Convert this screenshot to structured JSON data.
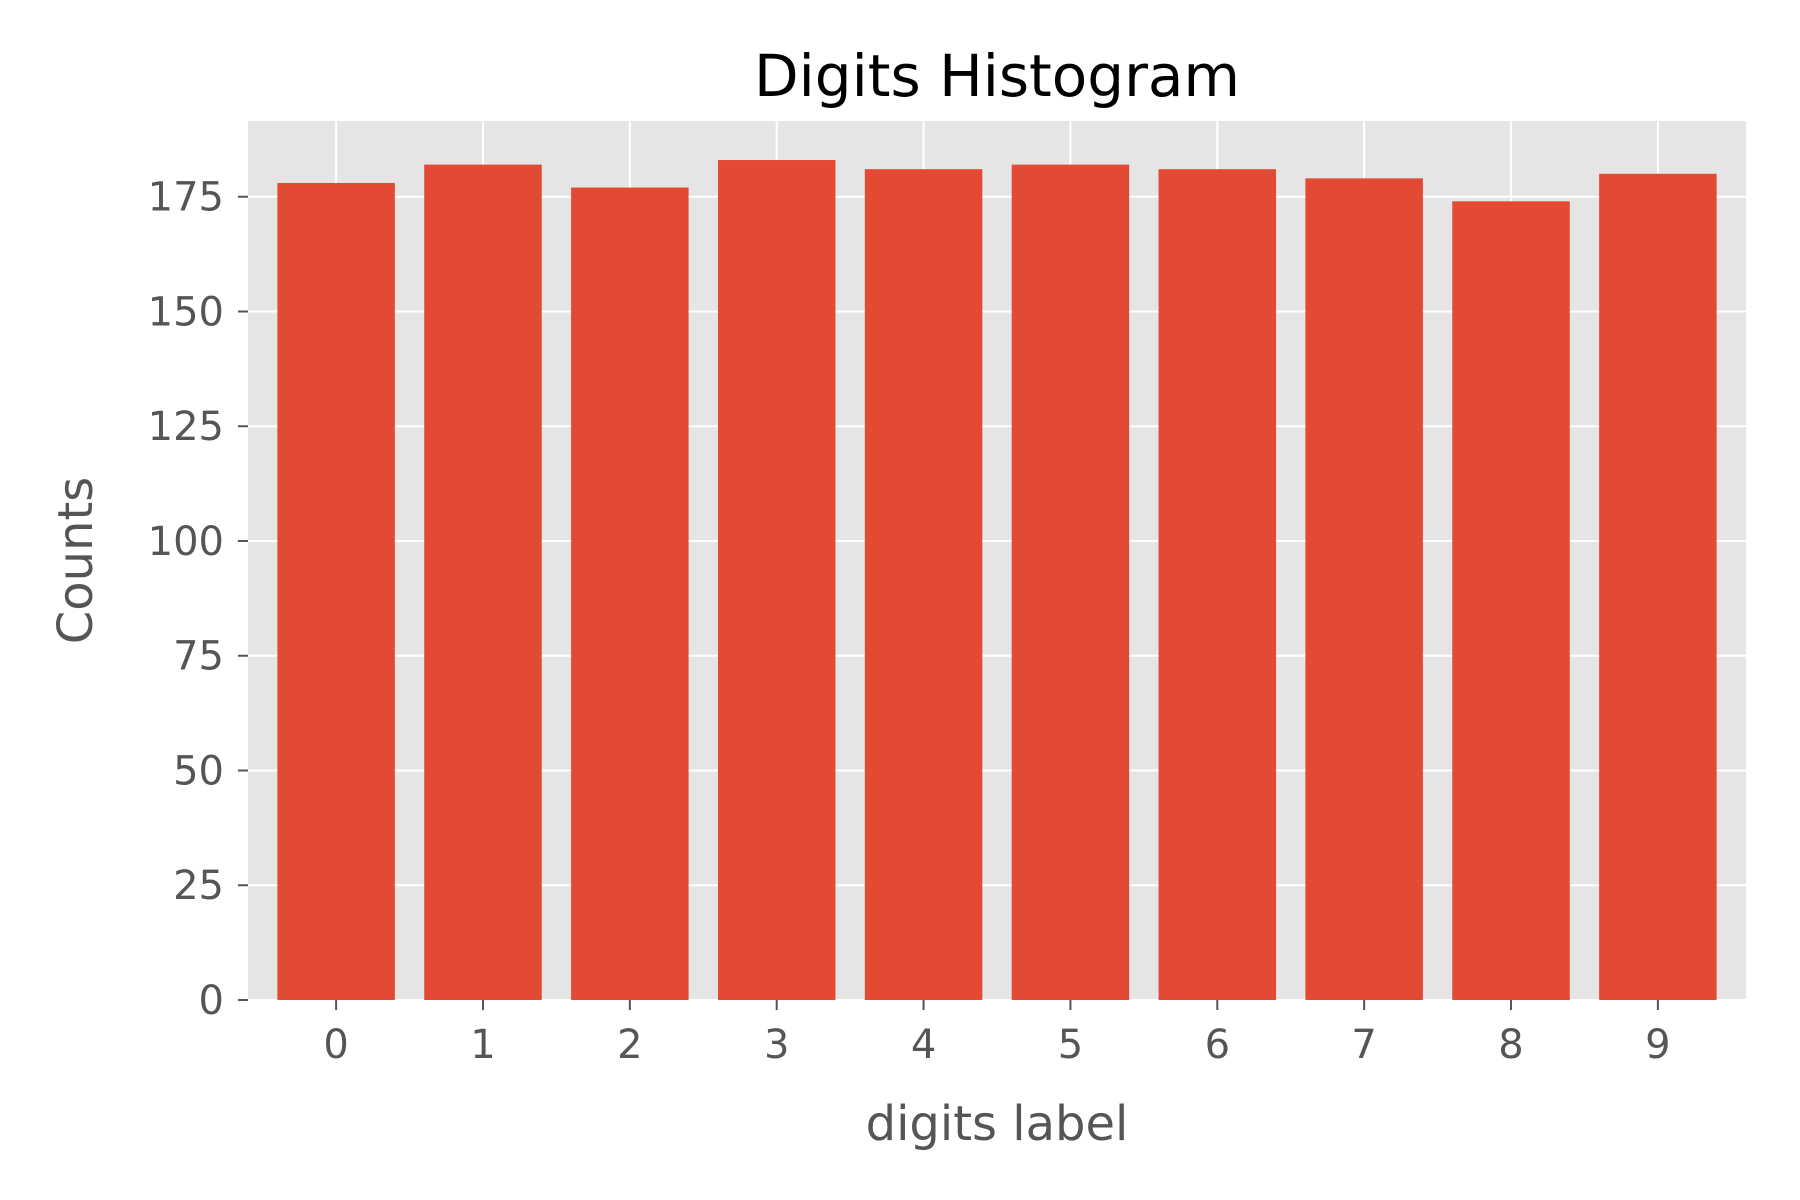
{
  "chart_data": {
    "type": "bar",
    "title": "Digits Histogram",
    "xlabel": "digits label",
    "ylabel": "Counts",
    "categories": [
      "0",
      "1",
      "2",
      "3",
      "4",
      "5",
      "6",
      "7",
      "8",
      "9"
    ],
    "values": [
      178,
      182,
      177,
      183,
      181,
      182,
      181,
      179,
      174,
      180
    ],
    "ylim": [
      0,
      191.5
    ],
    "yticks": [
      0,
      25,
      50,
      75,
      100,
      125,
      150,
      175
    ],
    "grid": true,
    "legend": "none",
    "colors": {
      "bar": "#E24A33",
      "plot_background": "#E5E5E5",
      "grid": "#FFFFFF",
      "tick_text": "#555555",
      "title_text": "#000000"
    }
  }
}
